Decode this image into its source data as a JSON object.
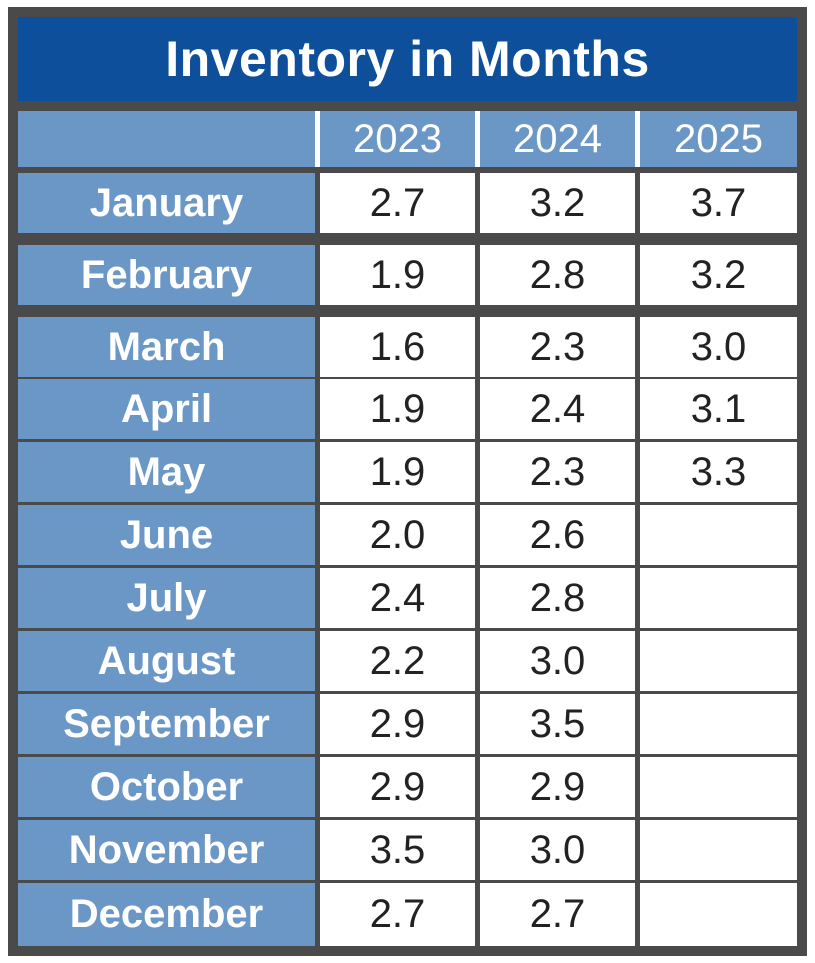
{
  "title": "Inventory in Months",
  "chart_data": {
    "type": "table",
    "title": "Inventory in Months",
    "columns": [
      "",
      "2023",
      "2024",
      "2025"
    ],
    "rows": [
      {
        "month": "January",
        "values": [
          "2.7",
          "3.2",
          "3.7"
        ]
      },
      {
        "month": "February",
        "values": [
          "1.9",
          "2.8",
          "3.2"
        ]
      },
      {
        "month": "March",
        "values": [
          "1.6",
          "2.3",
          "3.0"
        ]
      },
      {
        "month": "April",
        "values": [
          "1.9",
          "2.4",
          "3.1"
        ]
      },
      {
        "month": "May",
        "values": [
          "1.9",
          "2.3",
          "3.3"
        ]
      },
      {
        "month": "June",
        "values": [
          "2.0",
          "2.6",
          ""
        ]
      },
      {
        "month": "July",
        "values": [
          "2.4",
          "2.8",
          ""
        ]
      },
      {
        "month": "August",
        "values": [
          "2.2",
          "3.0",
          ""
        ]
      },
      {
        "month": "September",
        "values": [
          "2.9",
          "3.5",
          ""
        ]
      },
      {
        "month": "October",
        "values": [
          "2.9",
          "2.9",
          ""
        ]
      },
      {
        "month": "November",
        "values": [
          "3.5",
          "3.0",
          ""
        ]
      },
      {
        "month": "December",
        "values": [
          "2.7",
          "2.7",
          ""
        ]
      }
    ]
  },
  "colors": {
    "title_bg": "#0d4f9a",
    "header_bg": "#6b97c6",
    "border": "#4a4a4a",
    "cell_bg": "#ffffff"
  }
}
